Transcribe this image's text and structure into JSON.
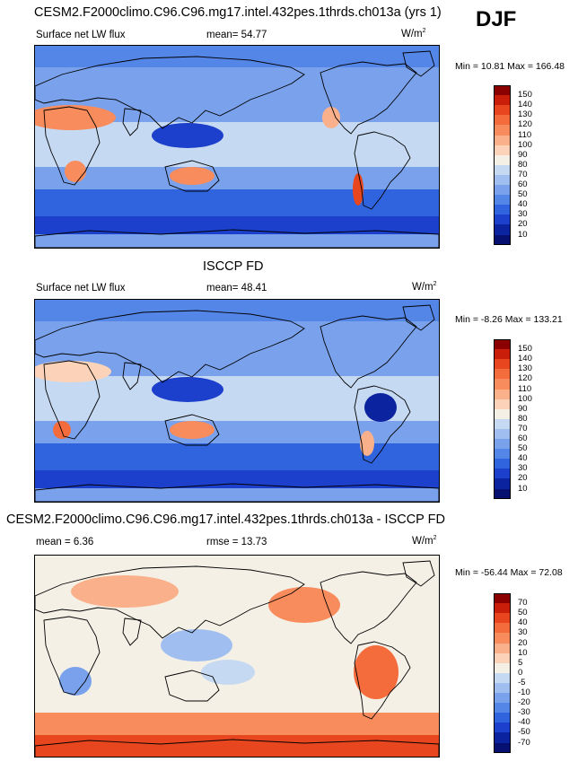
{
  "season": "DJF",
  "panels": [
    {
      "title": "CESM2.F2000climo.C96.C96.mg17.intel.432pes.1thrds.ch013a (yrs 1)",
      "left_label": "Surface net LW flux",
      "center_label": "mean=  54.77",
      "units": "W/m",
      "units_sup": "2",
      "minmax": "Min =  10.81 Max = 166.48",
      "levels": [
        "150",
        "140",
        "130",
        "120",
        "110",
        "100",
        "90",
        "80",
        "70",
        "60",
        "50",
        "40",
        "30",
        "20",
        "10"
      ],
      "colors": [
        "#8b0000",
        "#c81e0a",
        "#e8461e",
        "#f46b3c",
        "#f88c5c",
        "#fab08a",
        "#fcd3b8",
        "#f4f0e6",
        "#c6d9f2",
        "#a0bff0",
        "#7aa2ec",
        "#5486e8",
        "#2f64de",
        "#1c3fcc",
        "#0b239e",
        "#061070"
      ],
      "palette": "warm-interior"
    },
    {
      "title": "ISCCP FD",
      "left_label": "Surface net LW flux",
      "center_label": "mean=  48.41",
      "units": "W/m",
      "units_sup": "2",
      "minmax": "Min =  -8.26 Max = 133.21",
      "levels": [
        "150",
        "140",
        "130",
        "120",
        "110",
        "100",
        "90",
        "80",
        "70",
        "60",
        "50",
        "40",
        "30",
        "20",
        "10"
      ],
      "colors": [
        "#8b0000",
        "#c81e0a",
        "#e8461e",
        "#f46b3c",
        "#f88c5c",
        "#fab08a",
        "#fcd3b8",
        "#f4f0e6",
        "#c6d9f2",
        "#a0bff0",
        "#7aa2ec",
        "#5486e8",
        "#2f64de",
        "#1c3fcc",
        "#0b239e",
        "#061070"
      ],
      "palette": "cool"
    },
    {
      "title": "CESM2.F2000climo.C96.C96.mg17.intel.432pes.1thrds.ch013a - ISCCP FD",
      "left_label": "mean =   6.36",
      "center_label": "rmse =  13.73",
      "units": "W/m",
      "units_sup": "2",
      "minmax": "Min = -56.44 Max =  72.08",
      "levels": [
        "70",
        "50",
        "40",
        "30",
        "20",
        "10",
        "5",
        "0",
        "-5",
        "-10",
        "-20",
        "-30",
        "-40",
        "-50",
        "-70"
      ],
      "colors": [
        "#8b0000",
        "#c81e0a",
        "#e8461e",
        "#f46b3c",
        "#f88c5c",
        "#fab08a",
        "#fcd3b8",
        "#f4f0e6",
        "#c6d9f2",
        "#a0bff0",
        "#7aa2ec",
        "#5486e8",
        "#2f64de",
        "#1c3fcc",
        "#0b239e",
        "#061070"
      ],
      "palette": "diff"
    }
  ]
}
